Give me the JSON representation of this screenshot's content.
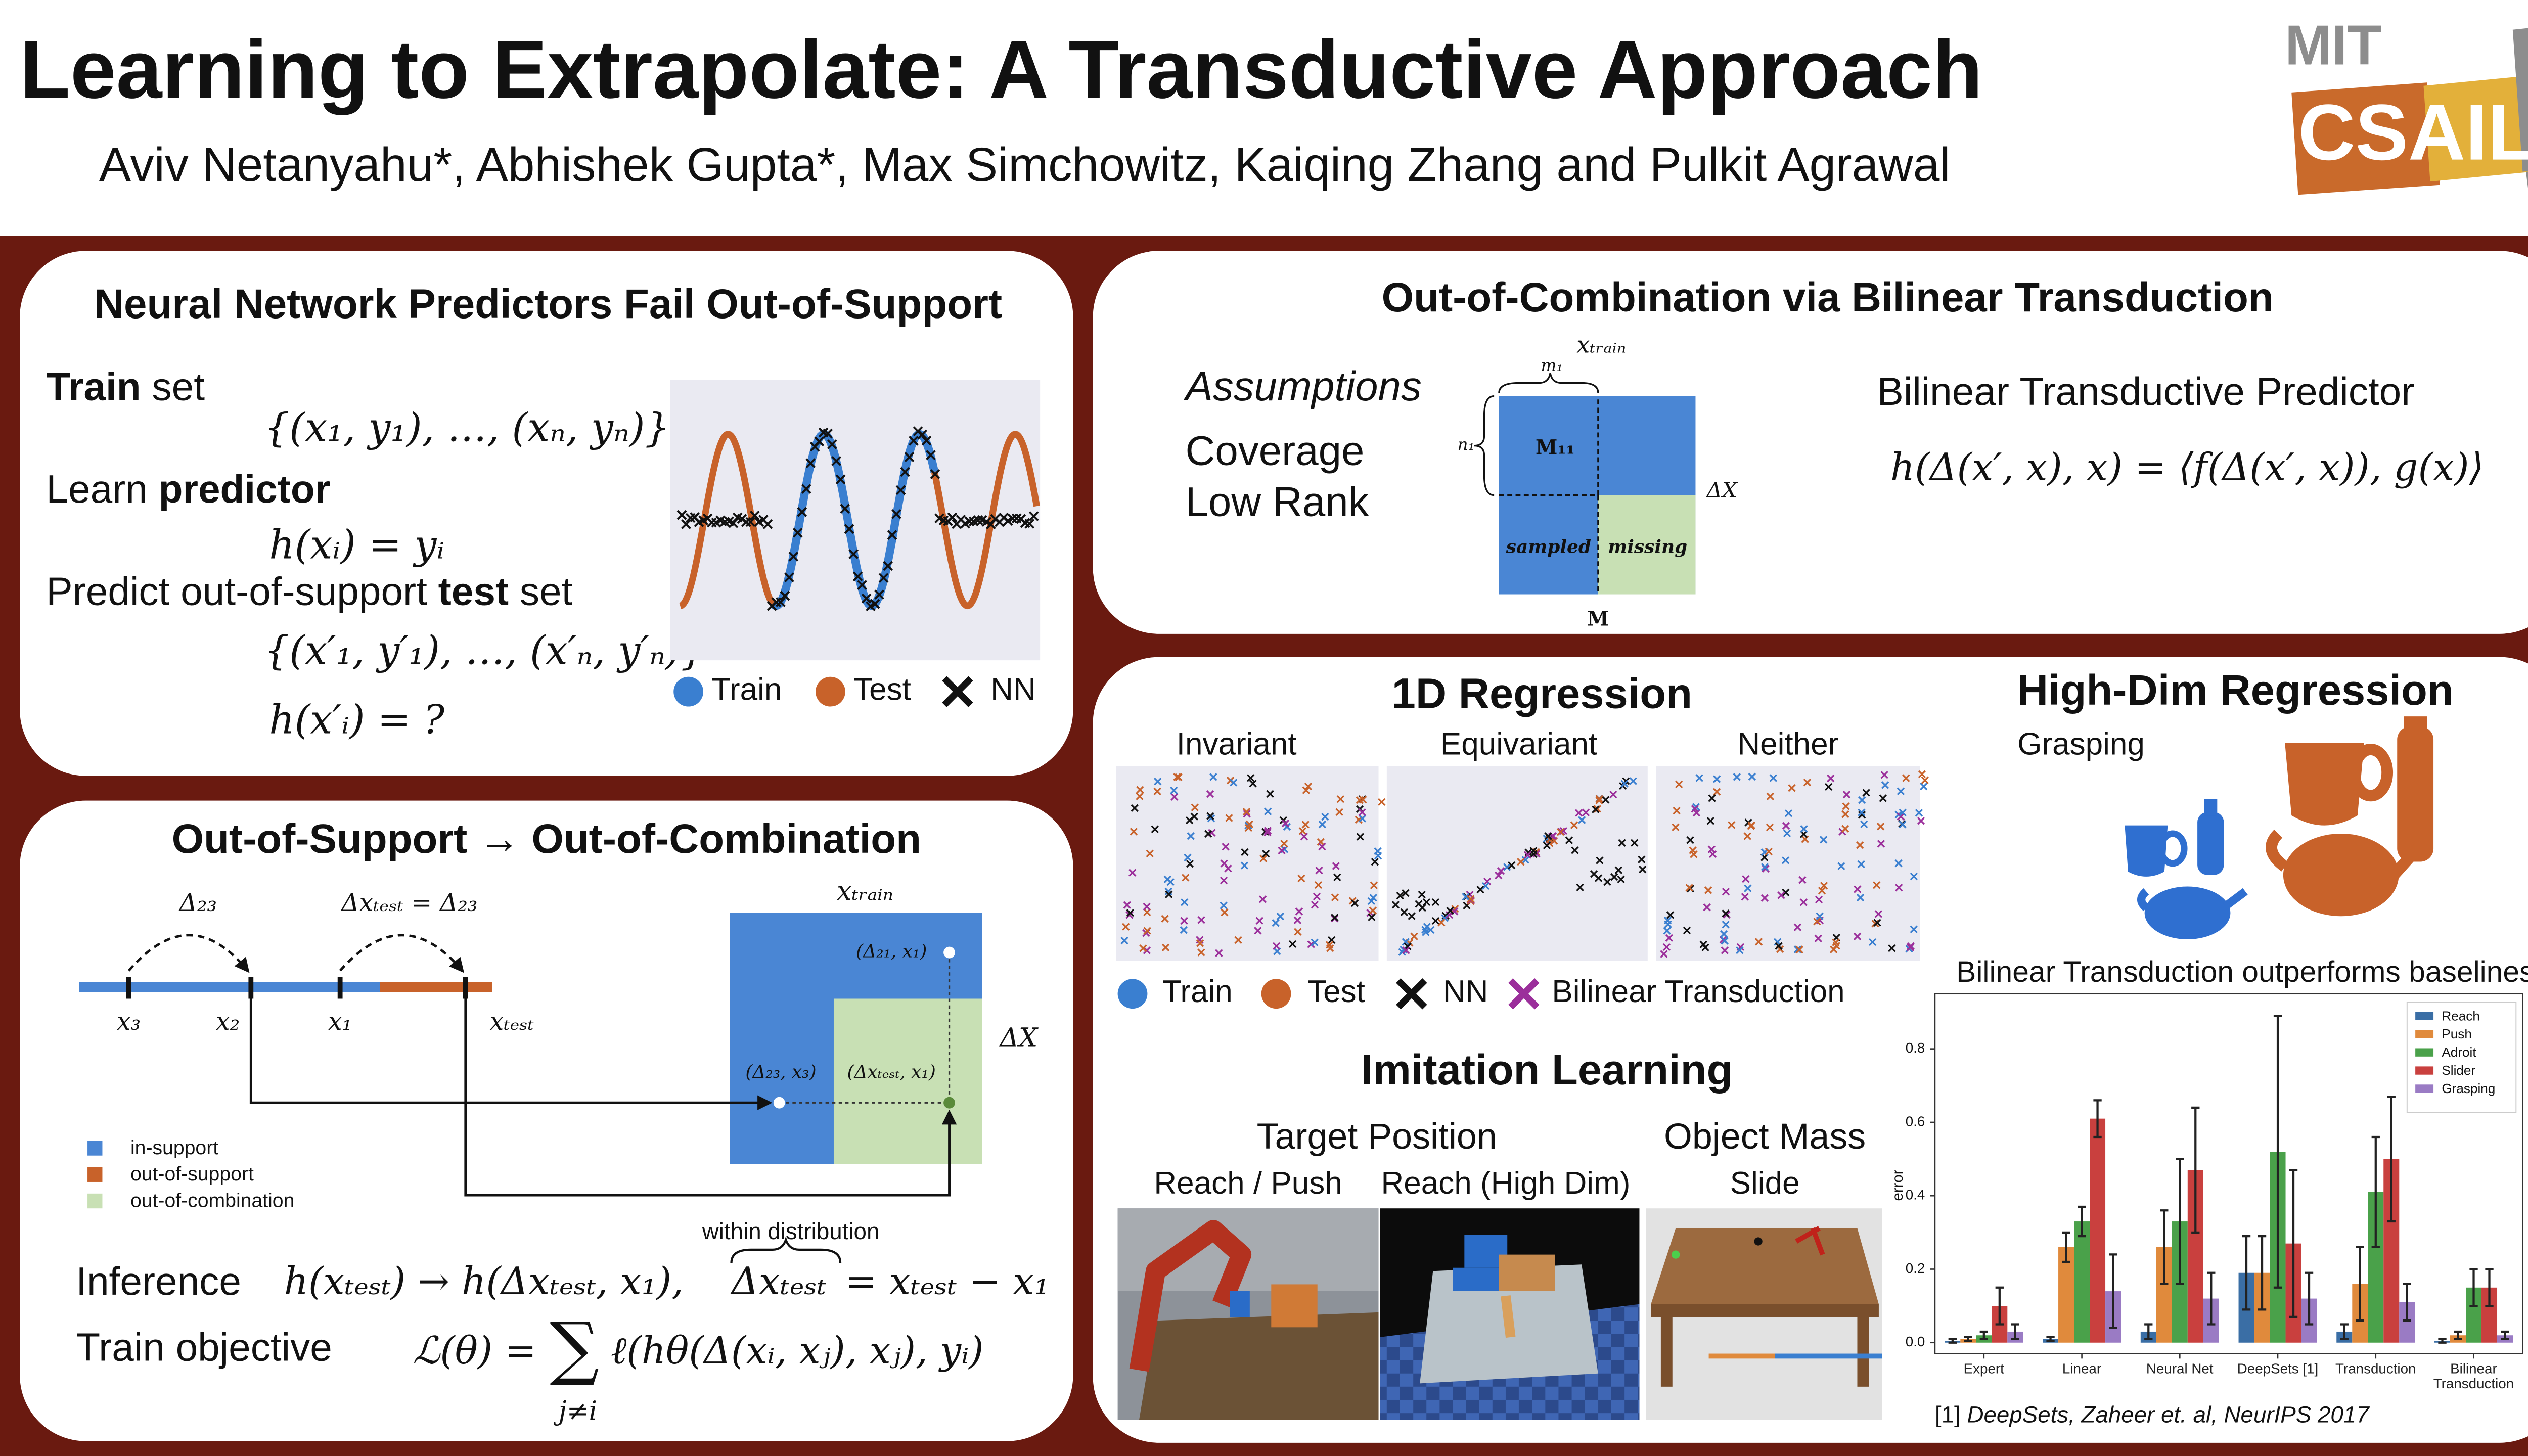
{
  "header": {
    "title": "Learning to Extrapolate: A Transductive Approach",
    "authors": "Aviv Netanyahu*, Abhishek Gupta*, Max Simchowitz, Kaiqing Zhang and Pulkit Agrawal",
    "logo_top": "MIT",
    "logo_main": "CSAIL"
  },
  "support_panel": {
    "title": "Neural Network Predictors Fail Out-of-Support",
    "train_bold": "Train",
    "train_rest": " set",
    "train_math": "{(x₁, y₁), …, (xₙ, yₙ)}",
    "learn": "Learn ",
    "learn_bold": "predictor",
    "learn_math": "h(xᵢ) = yᵢ",
    "predict": "Predict out-of-support ",
    "predict_bold": "test",
    "predict_rest": " set",
    "test_math": "{(x′₁, y′₁), …, (x′ₙ, y′ₙ)}",
    "query_math": "h(x′ᵢ) = ?",
    "legend": [
      "Train",
      "Test",
      "NN"
    ]
  },
  "combination_panel": {
    "title": "Out-of-Support → Out-of-Combination",
    "delta_label": "Δ₂₃",
    "delta_test_label": "Δxₜₑₛₜ = Δ₂₃",
    "points": [
      "x₃",
      "x₂",
      "x₁",
      "xₜₑₛₜ"
    ],
    "matrix_top": "xₜᵣₐᵢₙ",
    "matrix_side": "ΔX",
    "cell_labels": [
      "(Δ₂₁, x₁)",
      "(Δ₂₃, x₃)",
      "(Δxₜₑₛₜ, x₁)"
    ],
    "legend": [
      "in-support",
      "out-of-support",
      "out-of-combination"
    ],
    "inference": "Inference",
    "inference_math": "h(xₜₑₛₜ) → h(Δxₜₑₛₜ, x₁),",
    "brace_note": "within distribution",
    "brace_math": "Δxₜₑₛₜ",
    "brace_rest": "= xₜₑₛₜ − x₁",
    "objective": "Train objective",
    "objective_lhs": "ℒ(θ) =",
    "sum": "∑",
    "objective_rhs": "ℓ(hθ(Δ(xᵢ, xⱼ), xⱼ), yᵢ)",
    "sum_index": "j≠i"
  },
  "bilinear_panel": {
    "title": "Out-of-Combination via Bilinear Transduction",
    "assumptions": "Assumptions",
    "items": [
      "Coverage",
      "Low Rank"
    ],
    "matrix_top": "xₜᵣₐᵢₙ",
    "m1": "m₁",
    "n1": "n₁",
    "block": "M₁₁",
    "sampled": "sampled",
    "missing": "missing",
    "matrix_side": "ΔX",
    "matrix_name": "M",
    "predictor_title": "Bilinear Transductive Predictor",
    "predictor_math": "h(Δ(x′, x), x) = ⟨f(Δ(x′, x)), g(x)⟩"
  },
  "results_panel": {
    "regression_title": "1D Regression",
    "regression_plots": [
      "Invariant",
      "Equivariant",
      "Neither"
    ],
    "legend": [
      "Train",
      "Test",
      "NN",
      "Bilinear Transduction"
    ],
    "imitation_title": "Imitation Learning",
    "groups": [
      "Target Position",
      "Object Mass"
    ],
    "tasks": [
      "Reach / Push",
      "Reach (High Dim)",
      "Slide"
    ],
    "highdim_title": "High-Dim Regression",
    "highdim_task": "Grasping",
    "footnote_ref": "[1] ",
    "footnote": "DeepSets, Zaheer et. al, NeurIPS 2017"
  },
  "chart_data": {
    "type": "bar",
    "title": "Bilinear Transduction outperforms baselines",
    "ylabel": "error",
    "categories": [
      "Expert",
      "Linear",
      "Neural Net",
      "DeepSets [1]",
      "Transduction",
      "Bilinear Transduction"
    ],
    "series": [
      {
        "name": "Reach",
        "color": "#3a6ea5",
        "values": [
          0.005,
          0.01,
          0.03,
          0.19,
          0.03,
          0.005
        ],
        "errors": [
          0.005,
          0.005,
          0.02,
          0.1,
          0.02,
          0.005
        ]
      },
      {
        "name": "Push",
        "color": "#e08a3c",
        "values": [
          0.01,
          0.26,
          0.26,
          0.19,
          0.16,
          0.02
        ],
        "errors": [
          0.005,
          0.04,
          0.1,
          0.1,
          0.1,
          0.01
        ]
      },
      {
        "name": "Adroit",
        "color": "#4aa14a",
        "values": [
          0.02,
          0.33,
          0.33,
          0.52,
          0.41,
          0.15
        ],
        "errors": [
          0.01,
          0.04,
          0.17,
          0.37,
          0.15,
          0.05
        ]
      },
      {
        "name": "Slider",
        "color": "#c9403e",
        "values": [
          0.1,
          0.61,
          0.47,
          0.27,
          0.5,
          0.15
        ],
        "errors": [
          0.05,
          0.05,
          0.17,
          0.2,
          0.17,
          0.05
        ]
      },
      {
        "name": "Grasping",
        "color": "#9a7bc4",
        "values": [
          0.03,
          0.14,
          0.12,
          0.12,
          0.11,
          0.02
        ],
        "errors": [
          0.02,
          0.1,
          0.07,
          0.07,
          0.05,
          0.01
        ]
      }
    ],
    "ylim": [
      -0.03,
      0.95
    ],
    "yticks": [
      {
        "value": 0,
        "label": "0.0"
      },
      0.2,
      0.4,
      0.6,
      0.8
    ],
    "legend": "upper right"
  }
}
